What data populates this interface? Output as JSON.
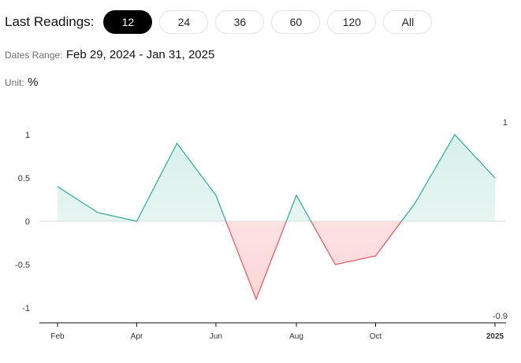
{
  "toolbar": {
    "label": "Last Readings:",
    "options": [
      "12",
      "24",
      "36",
      "60",
      "120",
      "All"
    ],
    "selected": "12"
  },
  "dates_range": {
    "label": "Dates Range:",
    "value": "Feb 29, 2024 - Jan 31, 2025"
  },
  "unit": {
    "label": "Unit:",
    "value": "%"
  },
  "chart_data": {
    "type": "area",
    "x": [
      "2024-02-29",
      "2024-03-31",
      "2024-04-30",
      "2024-05-31",
      "2024-06-30",
      "2024-07-31",
      "2024-08-31",
      "2024-09-30",
      "2024-10-31",
      "2024-11-30",
      "2024-12-31",
      "2025-01-31"
    ],
    "values": [
      0.4,
      0.1,
      0.0,
      0.9,
      0.3,
      -0.9,
      0.3,
      -0.5,
      -0.4,
      0.2,
      1.0,
      0.5
    ],
    "ylim": [
      -1,
      1
    ],
    "y_ticks": [
      "1",
      "0.5",
      "0",
      "-0.5",
      "-1"
    ],
    "x_ticks": [
      {
        "label": "Feb",
        "date": "2024-02-29"
      },
      {
        "label": "Apr",
        "date": "2024-04-30"
      },
      {
        "label": "Jun",
        "date": "2024-06-30"
      },
      {
        "label": "Aug",
        "date": "2024-08-31"
      },
      {
        "label": "Oct",
        "date": "2024-10-31"
      },
      {
        "label": "2025",
        "date": "2025-01-31"
      }
    ],
    "max_label": "1",
    "min_label": "-0.9",
    "grid": false,
    "baseline": 0,
    "colors": {
      "positive_line": "#2ba89a",
      "positive_fill": "#d9f0ea",
      "negative_line": "#e8545e",
      "negative_fill": "#fbd7d7",
      "zero_line": "#dddddd",
      "axis": "#111111"
    }
  }
}
